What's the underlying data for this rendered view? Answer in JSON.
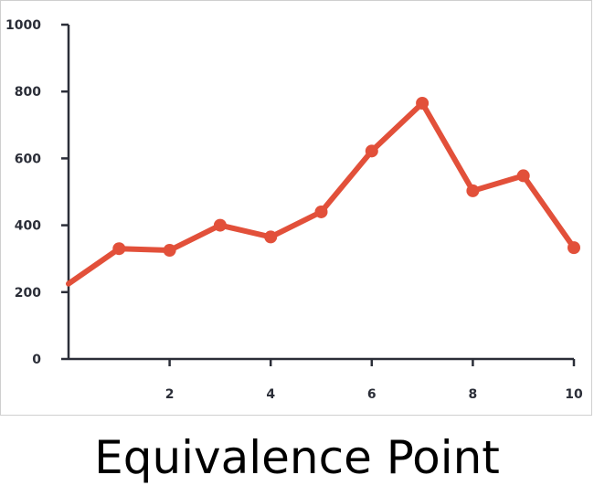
{
  "caption": "Equivalence Point",
  "colors": {
    "series": "#e2503a",
    "axis": "#2b2e38",
    "background": "#ffffff"
  },
  "chart_data": {
    "type": "line",
    "title": "",
    "xlabel": "",
    "ylabel": "",
    "x": [
      0,
      1,
      2,
      3,
      4,
      5,
      6,
      7,
      8,
      9,
      10
    ],
    "series": [
      {
        "values": [
          225,
          330,
          325,
          400,
          365,
          440,
          622,
          765,
          503,
          548,
          333
        ]
      }
    ],
    "xlim": [
      0,
      10
    ],
    "ylim": [
      0,
      1000
    ],
    "xticks": [
      2,
      4,
      6,
      8,
      10
    ],
    "yticks": [
      0,
      200,
      400,
      600,
      800,
      1000
    ],
    "xtick_labels": [
      "2",
      "4",
      "6",
      "8",
      "10"
    ],
    "ytick_labels": [
      "0",
      "200",
      "400",
      "600",
      "800",
      "1000"
    ],
    "grid": false,
    "markers": true
  }
}
